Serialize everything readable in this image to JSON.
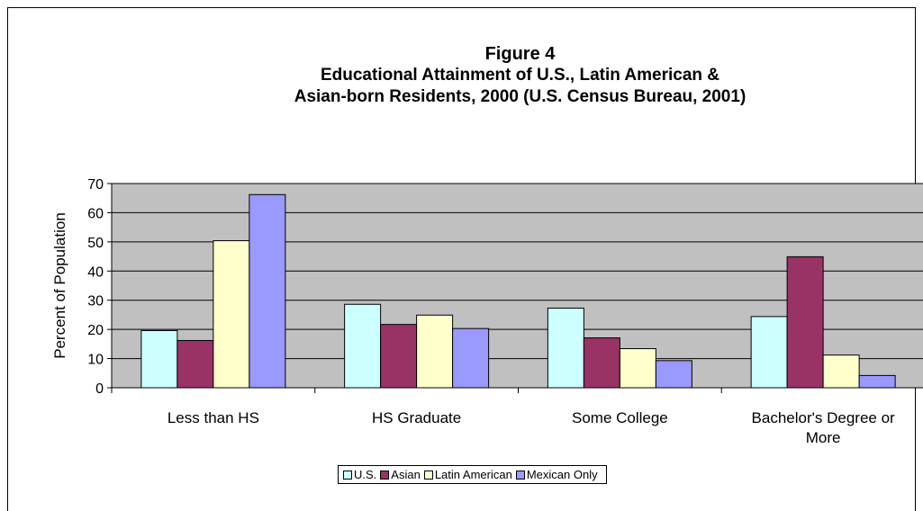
{
  "chart_data": {
    "type": "bar",
    "title": "Figure 4",
    "subtitle_lines": [
      "Educational Attainment of U.S., Latin American &",
      "Asian-born Residents, 2000 (U.S. Census Bureau, 2001)"
    ],
    "xlabel": "",
    "ylabel": "Percent of Population",
    "ylim": [
      0,
      70
    ],
    "yticks": [
      0,
      10,
      20,
      30,
      40,
      50,
      60,
      70
    ],
    "grid": true,
    "legend_position": "bottom",
    "categories": [
      [
        "Less than HS"
      ],
      [
        "HS Graduate"
      ],
      [
        "Some College"
      ],
      [
        "Bachelor's Degree or",
        "More"
      ]
    ],
    "series": [
      {
        "name": "U.S.",
        "color": "#ccffff",
        "values": [
          19.6,
          28.6,
          27.3,
          24.4
        ]
      },
      {
        "name": "Asian",
        "color": "#993366",
        "values": [
          16.2,
          21.7,
          17.1,
          44.9
        ]
      },
      {
        "name": "Latin American",
        "color": "#ffffcc",
        "values": [
          50.4,
          24.9,
          13.4,
          11.2
        ]
      },
      {
        "name": "Mexican Only",
        "color": "#9999ff",
        "values": [
          66.2,
          20.3,
          9.3,
          4.2
        ]
      }
    ],
    "plot_background": "#c0c0c0"
  }
}
